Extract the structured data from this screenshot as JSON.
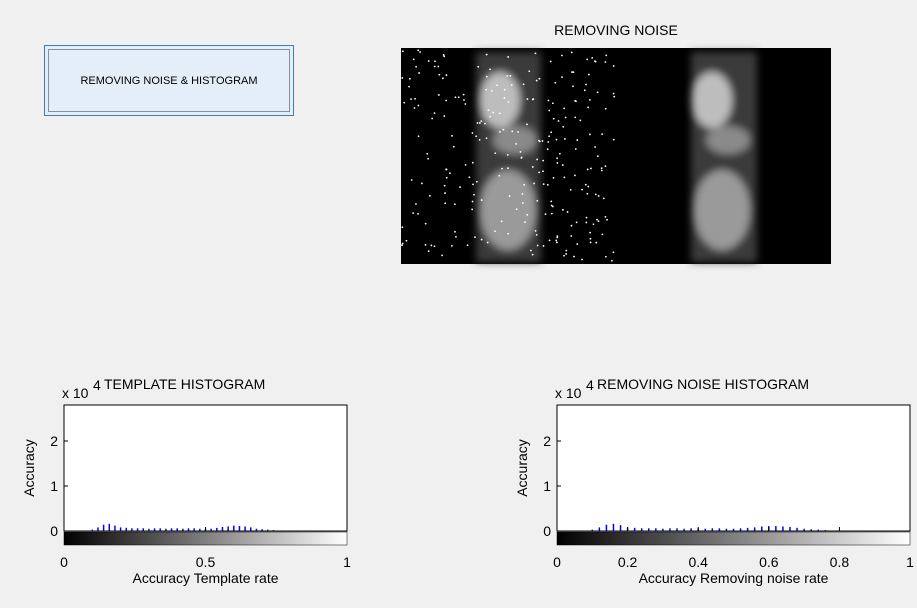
{
  "button": {
    "label": "REMOVING NOISE & HISTOGRAM"
  },
  "image_panel": {
    "title": "REMOVING NOISE"
  },
  "chart_data": [
    {
      "type": "bar",
      "title": "TEMPLATE HISTOGRAM",
      "exponent_base": "x 10",
      "exponent": 4,
      "xlabel": "Accuracy Template rate",
      "ylabel": "Accuracy",
      "color": "#0000ff",
      "x": [
        0.1,
        0.12,
        0.14,
        0.16,
        0.18,
        0.2,
        0.22,
        0.24,
        0.26,
        0.28,
        0.3,
        0.32,
        0.34,
        0.36,
        0.38,
        0.4,
        0.42,
        0.44,
        0.46,
        0.48,
        0.5,
        0.52,
        0.54,
        0.56,
        0.58,
        0.6,
        0.62,
        0.64,
        0.66,
        0.68,
        0.7,
        0.72,
        0.74,
        0.76
      ],
      "values": [
        0.03,
        0.08,
        0.14,
        0.16,
        0.12,
        0.08,
        0.07,
        0.06,
        0.06,
        0.06,
        0.05,
        0.06,
        0.06,
        0.05,
        0.06,
        0.06,
        0.05,
        0.06,
        0.06,
        0.05,
        0.05,
        0.05,
        0.07,
        0.09,
        0.1,
        0.12,
        0.11,
        0.1,
        0.08,
        0.05,
        0.04,
        0.03,
        0.02,
        0.01
      ],
      "xlim": [
        0,
        1
      ],
      "ylim": [
        0,
        2.8
      ],
      "xticks": [
        0,
        0.5,
        1
      ],
      "yticks": [
        0,
        1,
        2
      ]
    },
    {
      "type": "bar",
      "title": "REMOVING NOISE HISTOGRAM",
      "exponent_base": "x 10",
      "exponent": 4,
      "xlabel": "Accuracy Removing noise rate",
      "ylabel": "Accuracy",
      "color": "#0000ff",
      "x": [
        0.1,
        0.12,
        0.14,
        0.16,
        0.18,
        0.2,
        0.22,
        0.24,
        0.26,
        0.28,
        0.3,
        0.32,
        0.34,
        0.36,
        0.38,
        0.4,
        0.42,
        0.44,
        0.46,
        0.48,
        0.5,
        0.52,
        0.54,
        0.56,
        0.58,
        0.6,
        0.62,
        0.64,
        0.66,
        0.68,
        0.7,
        0.72,
        0.74,
        0.76,
        0.78
      ],
      "values": [
        0.03,
        0.08,
        0.14,
        0.16,
        0.13,
        0.08,
        0.07,
        0.06,
        0.06,
        0.06,
        0.05,
        0.06,
        0.06,
        0.05,
        0.06,
        0.06,
        0.05,
        0.06,
        0.06,
        0.05,
        0.05,
        0.06,
        0.07,
        0.08,
        0.1,
        0.11,
        0.11,
        0.1,
        0.09,
        0.07,
        0.05,
        0.04,
        0.03,
        0.02,
        0.01
      ],
      "xlim": [
        0,
        1
      ],
      "ylim": [
        0,
        2.8
      ],
      "xticks": [
        0,
        0.2,
        0.4,
        0.6,
        0.8,
        1
      ],
      "yticks": [
        0,
        1,
        2
      ]
    }
  ]
}
